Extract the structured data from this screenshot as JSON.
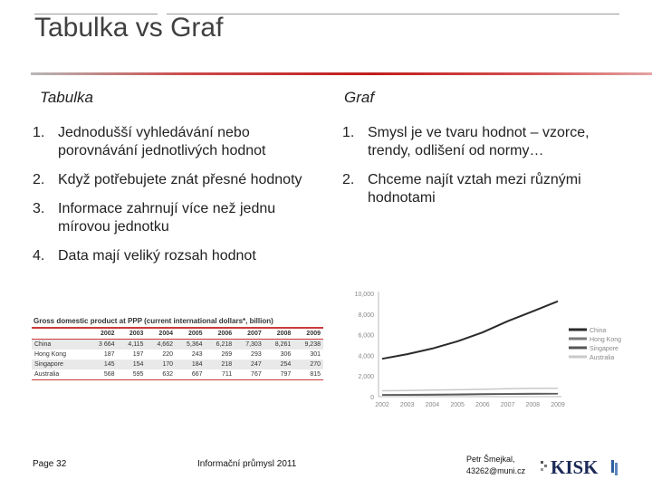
{
  "slide": {
    "title": "Tabulka vs Graf",
    "left": {
      "heading": "Tabulka",
      "items": [
        {
          "num": "1.",
          "text": "Jednodušší vyhledávání nebo porovnávání jednotlivých hodnot"
        },
        {
          "num": "2.",
          "text": "Když potřebujete znát přesné hodnoty"
        },
        {
          "num": "3.",
          "text": "Informace zahrnují více než jednu mírovou jednotku"
        },
        {
          "num": "4.",
          "text": "Data mají veliký rozsah hodnot"
        }
      ]
    },
    "right": {
      "heading": "Graf",
      "items": [
        {
          "num": "1.",
          "text": "Smysl je ve tvaru hodnot – vzorce, trendy, odlišení od normy…"
        },
        {
          "num": "2.",
          "text": "Chceme najít vztah mezi různými hodnotami"
        }
      ]
    }
  },
  "gdp_table": {
    "caption": "Gross domestic product at PPP (current international dollars*, billion)",
    "years": [
      "2002",
      "2003",
      "2004",
      "2005",
      "2006",
      "2007",
      "2008",
      "2009"
    ],
    "rows": [
      {
        "label": "China",
        "values": [
          "3 664",
          "4,115",
          "4,662",
          "5,364",
          "6,218",
          "7,303",
          "8,261",
          "9,238"
        ]
      },
      {
        "label": "Hong Kong",
        "values": [
          "187",
          "197",
          "220",
          "243",
          "269",
          "293",
          "306",
          "301"
        ]
      },
      {
        "label": "Singapore",
        "values": [
          "145",
          "154",
          "170",
          "184",
          "218",
          "247",
          "254",
          "270"
        ]
      },
      {
        "label": "Australia",
        "values": [
          "568",
          "595",
          "632",
          "667",
          "711",
          "767",
          "797",
          "815"
        ]
      }
    ]
  },
  "chart_data": {
    "type": "line",
    "x": [
      "2002",
      "2003",
      "2004",
      "2005",
      "2006",
      "2007",
      "2008",
      "2009"
    ],
    "yticks": [
      "10,000",
      "8,000",
      "6,000",
      "4,000",
      "2,000",
      "0"
    ],
    "ylim": [
      0,
      10000
    ],
    "series": [
      {
        "name": "China",
        "values": [
          3664,
          4115,
          4662,
          5364,
          6218,
          7303,
          8261,
          9238
        ],
        "color": "#2a2a2a"
      },
      {
        "name": "Hong Kong",
        "values": [
          187,
          197,
          220,
          243,
          269,
          293,
          306,
          301
        ],
        "color": "#7a7a7a"
      },
      {
        "name": "Singapore",
        "values": [
          145,
          154,
          170,
          184,
          218,
          247,
          254,
          270
        ],
        "color": "#555555"
      },
      {
        "name": "Australia",
        "values": [
          568,
          595,
          632,
          667,
          711,
          767,
          797,
          815
        ],
        "color": "#c9c9c9"
      }
    ],
    "legend_position": "right",
    "grid": false
  },
  "footer": {
    "page": "Page 32",
    "course": "Informační průmysl 2011",
    "author_line1": "Petr Šmejkal,",
    "author_line2": "43262@muni.cz",
    "logo_text": "KISK"
  },
  "colors": {
    "accent": "#c21d1d",
    "text": "#222222"
  }
}
